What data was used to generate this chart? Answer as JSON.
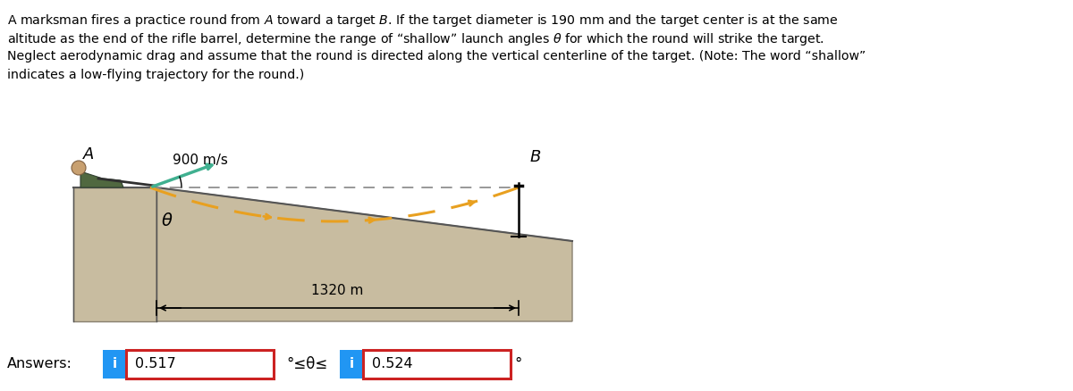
{
  "problem_text_lines": [
    "A marksman fires a practice round from Â toward a target B. If the target diameter is 190 mm and the target center is at the same",
    "altitude as the end of the rifle barrel, determine the range of “shallow” launch angles θ for which the round will strike the target.",
    "Neglect aerodynamic drag and assume that the round is directed along the vertical centerline of the target. (Note: The word “shallow”",
    "indicates a low-flying trajectory for the round.)"
  ],
  "answer_label": "Answers:",
  "answer1": "0.517",
  "answer2": "0.524",
  "inequality_text": "°≤θ≤",
  "degree_symbol": "°",
  "speed_label": "900 m/s",
  "distance_label": "1320 m",
  "point_A": "A",
  "point_B": "B",
  "angle_label": "θ",
  "bg_color": "#ffffff",
  "text_color": "#000000",
  "trajectory_color": "#e8a020",
  "velocity_arrow_color": "#40b090",
  "dashed_line_color": "#909090",
  "box_border_color": "#cc2222",
  "info_box_color": "#2196F3",
  "platform_face_color": "#c8bca0",
  "platform_edge_color": "#888070",
  "slope_face_color": "#c8bca0",
  "marksman_color": "#506040"
}
